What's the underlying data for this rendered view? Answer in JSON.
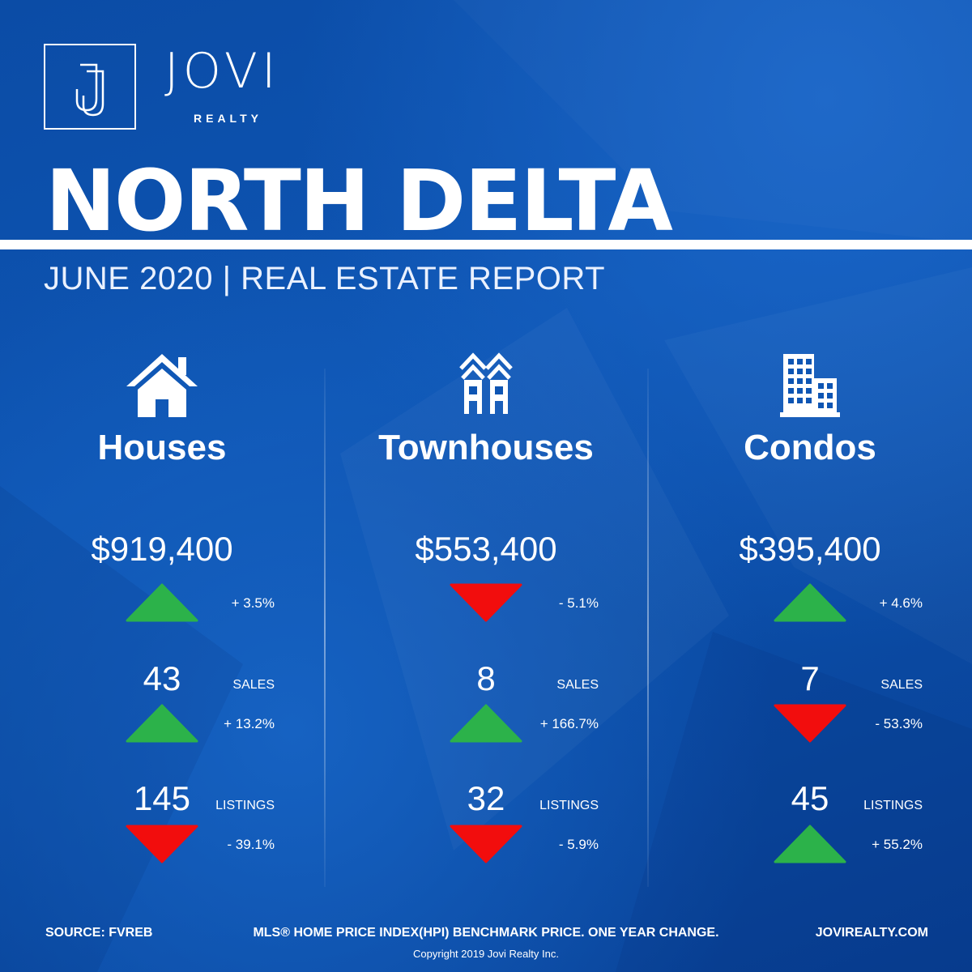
{
  "brand": {
    "name": "JOVI",
    "sub": "REALTY",
    "monogram": "J"
  },
  "title": "NORTH DELTA",
  "subtitle": "JUNE 2020 | REAL ESTATE REPORT",
  "colors": {
    "background": "#0a4aa6",
    "up": "#2cb24a",
    "down": "#f20d0d",
    "text": "#ffffff"
  },
  "columns": [
    {
      "icon": "house-icon",
      "category": "Houses",
      "price": "$919,400",
      "price_change": {
        "text": "+ 3.5%",
        "direction": "up"
      },
      "sales": {
        "value": "43",
        "label": "SALES",
        "change": "+ 13.2%",
        "direction": "up"
      },
      "listings": {
        "value": "145",
        "label": "LISTINGS",
        "change": "- 39.1%",
        "direction": "down"
      }
    },
    {
      "icon": "townhouse-icon",
      "category": "Townhouses",
      "price": "$553,400",
      "price_change": {
        "text": "- 5.1%",
        "direction": "down"
      },
      "sales": {
        "value": "8",
        "label": "SALES",
        "change": "+ 166.7%",
        "direction": "up"
      },
      "listings": {
        "value": "32",
        "label": "LISTINGS",
        "change": "- 5.9%",
        "direction": "down"
      }
    },
    {
      "icon": "condo-building-icon",
      "category": "Condos",
      "price": "$395,400",
      "price_change": {
        "text": "+ 4.6%",
        "direction": "up"
      },
      "sales": {
        "value": "7",
        "label": "SALES",
        "change": "- 53.3%",
        "direction": "down"
      },
      "listings": {
        "value": "45",
        "label": "LISTINGS",
        "change": "+ 55.2%",
        "direction": "up"
      }
    }
  ],
  "footer": {
    "source": "SOURCE:  FVREB",
    "note": "MLS® HOME PRICE INDEX(HPI) BENCHMARK PRICE. ONE YEAR CHANGE.",
    "website": "JOVIREALTY.COM",
    "copyright": "Copyright 2019 Jovi Realty Inc."
  }
}
